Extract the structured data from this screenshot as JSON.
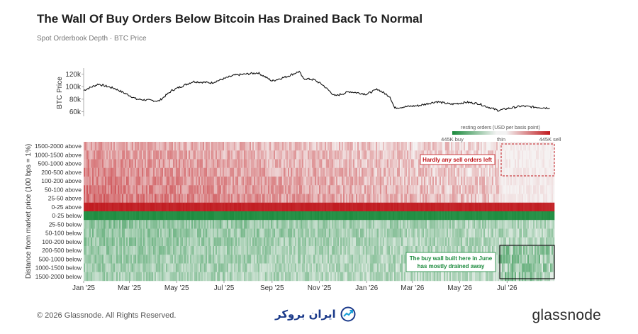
{
  "header": {
    "title": "The Wall Of Buy Orders Below Bitcoin Has Drained Back To Normal",
    "subtitle": "Spot Orderbook Depth · BTC Price"
  },
  "footer": {
    "copyright": "© 2026 Glassnode. All Rights Reserved.",
    "center_logo_text": "ایران بروکر",
    "brand": "glassnode"
  },
  "colors": {
    "sell_strong": "#c0171c",
    "buy_strong": "#1a8a3c",
    "thin": "#f4f4f4",
    "price_line": "#111111",
    "annotation_sell": "#c0171c",
    "annotation_buy": "#1a8a3c"
  },
  "chart_data": [
    {
      "type": "line",
      "name": "btc-price",
      "ylabel": "BTC Price",
      "y_ticks": [
        "120k",
        "100k",
        "80k",
        "60k"
      ],
      "y_tick_values": [
        120000,
        100000,
        80000,
        60000
      ],
      "ylim": [
        55000,
        125000
      ],
      "x": [
        "2025-01-01",
        "2025-01-20",
        "2025-02-10",
        "2025-03-01",
        "2025-03-10",
        "2025-04-08",
        "2025-04-25",
        "2025-05-22",
        "2025-06-15",
        "2025-07-14",
        "2025-08-14",
        "2025-09-01",
        "2025-09-20",
        "2025-10-06",
        "2025-10-11",
        "2025-10-25",
        "2025-11-05",
        "2025-11-21",
        "2025-12-10",
        "2026-01-01",
        "2026-01-15",
        "2026-01-31",
        "2026-02-06",
        "2026-02-20",
        "2026-03-10",
        "2026-04-01",
        "2026-04-20",
        "2026-05-10",
        "2026-05-25",
        "2026-06-05",
        "2026-06-20",
        "2026-07-01",
        "2026-07-20",
        "2026-08-10",
        "2026-08-25"
      ],
      "y": [
        94000,
        104000,
        97000,
        86000,
        80000,
        77000,
        94000,
        108000,
        106000,
        118000,
        122000,
        109000,
        116000,
        124000,
        113000,
        111000,
        103000,
        85000,
        92000,
        88000,
        96000,
        84000,
        66000,
        68000,
        70000,
        76000,
        72000,
        75000,
        73000,
        68000,
        62000,
        65000,
        69000,
        67000,
        66000
      ]
    },
    {
      "type": "heatmap",
      "name": "orderbook-depth",
      "ylabel": "Distance from market price (100 bps = 1%)",
      "rows": [
        "1500-2000 above",
        "1000-1500 above",
        "500-1000 above",
        "200-500 above",
        "100-200 above",
        "50-100 above",
        "25-50 above",
        "0-25 above",
        "0-25 below",
        "25-50 below",
        "50-100 below",
        "100-200 below",
        "200-500 below",
        "500-1000 below",
        "1000-1500 below",
        "1500-2000 below"
      ],
      "x_ticks": [
        "Jan '25",
        "Mar '25",
        "May '25",
        "Jul '25",
        "Sep '25",
        "Nov '25",
        "Jan '26",
        "Mar '26",
        "May '26",
        "Jul '26"
      ],
      "x_tick_dates": [
        "2025-01-01",
        "2025-03-01",
        "2025-05-01",
        "2025-07-01",
        "2025-09-01",
        "2025-11-01",
        "2026-01-01",
        "2026-03-01",
        "2026-05-01",
        "2026-07-01"
      ],
      "x_range": [
        "2025-01-01",
        "2026-08-31"
      ],
      "legend": {
        "title": "resting orders (USD per basis point)",
        "buy_label": "445K buy",
        "mid_label": "thin",
        "sell_label": "445K sell",
        "placement": "top-right"
      },
      "annotations": [
        {
          "text": "Hardly any sell orders left",
          "color": "#c0171c"
        },
        {
          "text_lines": [
            "The buy wall built here in June",
            "has mostly drained away"
          ],
          "color": "#1a8a3c"
        }
      ]
    }
  ]
}
